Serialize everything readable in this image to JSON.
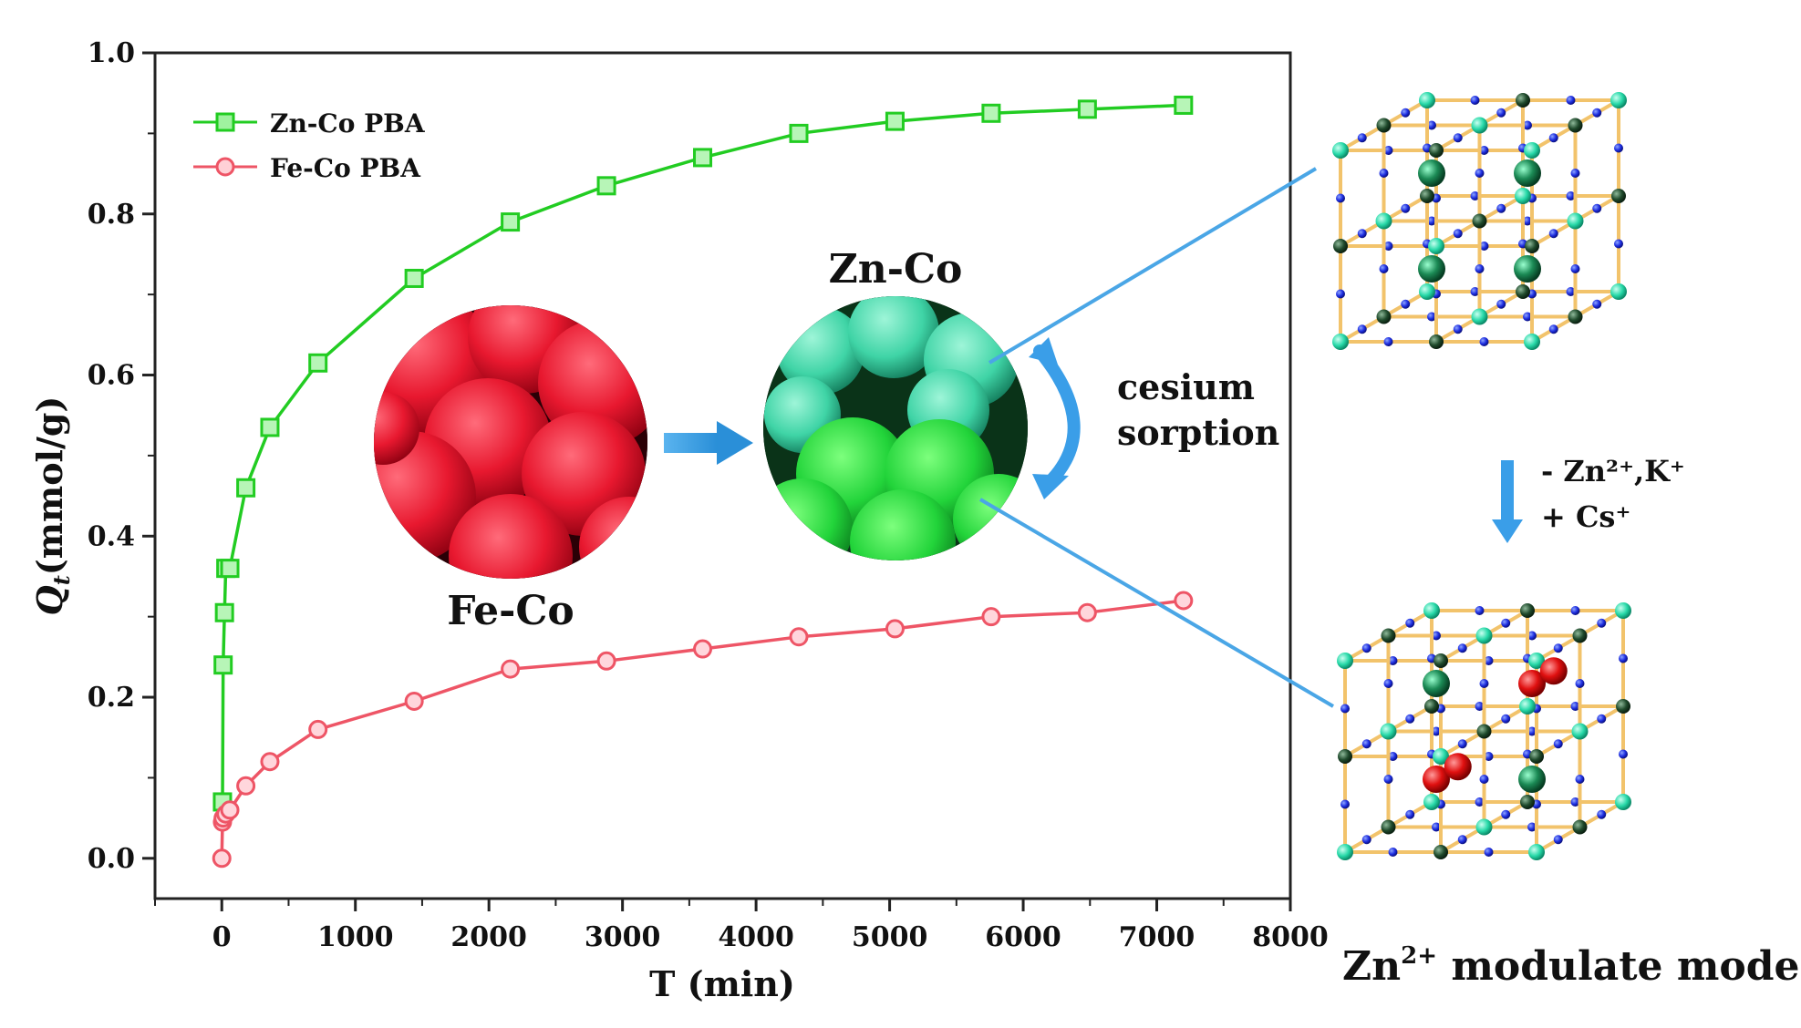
{
  "chart_data": {
    "type": "line",
    "xlabel": "T (min)",
    "ylabel_main": "Q",
    "ylabel_sub": "t",
    "ylabel_rest": "(mmol/g)",
    "xlim": [
      -500,
      8000
    ],
    "ylim": [
      -0.05,
      1.0
    ],
    "xticks": [
      0,
      1000,
      2000,
      3000,
      4000,
      5000,
      6000,
      7000,
      8000
    ],
    "yticks": [
      0.0,
      0.2,
      0.4,
      0.6,
      0.8,
      1.0
    ],
    "xtick_labels": [
      "0",
      "1000",
      "2000",
      "3000",
      "4000",
      "5000",
      "6000",
      "7000",
      "8000"
    ],
    "ytick_labels": [
      "0.0",
      "0.2",
      "0.4",
      "0.6",
      "0.8",
      "1.0"
    ],
    "legend_position": "top-left",
    "series": [
      {
        "name": "Zn-Co PBA",
        "color": "#22cc22",
        "marker": "square",
        "x": [
          5,
          10,
          20,
          30,
          60,
          180,
          360,
          720,
          1440,
          2160,
          2880,
          3600,
          4320,
          5040,
          5760,
          6480,
          7200
        ],
        "y": [
          0.07,
          0.24,
          0.305,
          0.36,
          0.36,
          0.46,
          0.535,
          0.615,
          0.72,
          0.79,
          0.835,
          0.87,
          0.9,
          0.915,
          0.925,
          0.93,
          0.935
        ]
      },
      {
        "name": "Fe-Co PBA",
        "color": "#ee5566",
        "marker": "circle",
        "x": [
          0,
          5,
          10,
          30,
          60,
          180,
          360,
          720,
          1440,
          2160,
          2880,
          3600,
          4320,
          5040,
          5760,
          6480,
          7200
        ],
        "y": [
          0.0,
          0.045,
          0.05,
          0.055,
          0.06,
          0.09,
          0.12,
          0.16,
          0.195,
          0.235,
          0.245,
          0.26,
          0.275,
          0.285,
          0.3,
          0.305,
          0.32
        ]
      }
    ]
  },
  "inset": {
    "fe_label": "Fe-Co",
    "zn_label": "Zn-Co",
    "cesium_line1": "cesium",
    "cesium_line2": "sorption",
    "transform_line1": "- Zn²⁺,K⁺",
    "transform_line2": "+ Cs⁺",
    "model_label_pre": "Zn",
    "model_label_sup": "2+",
    "model_label_post": " modulate model"
  }
}
